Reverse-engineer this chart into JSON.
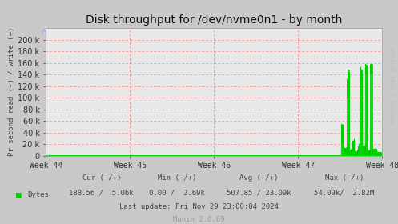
{
  "title": "Disk throughput for /dev/nvme0n1 - by month",
  "ylabel": "Pr second read (-) / write (+)",
  "xlabel_ticks": [
    "Week 44",
    "Week 45",
    "Week 46",
    "Week 47",
    "Week 48"
  ],
  "ylim": [
    0,
    220000
  ],
  "yticks": [
    0,
    20000,
    40000,
    60000,
    80000,
    100000,
    120000,
    140000,
    160000,
    180000,
    200000
  ],
  "bg_color": "#c9c9c9",
  "plot_bg_color": "#e8e8e8",
  "grid_color": "#ff9999",
  "line_color": "#00cc00",
  "fill_color": "#00dd00",
  "watermark": "RRDTOOL / TOBI OETIKER",
  "footer_munin": "Munin 2.0.69",
  "footer_update": "Last update: Fri Nov 29 23:00:04 2024",
  "legend_label": "Bytes",
  "legend_cur": "188.56 /  5.06k",
  "legend_min": "0.00 /  2.69k",
  "legend_avg": "507.85 / 23.09k",
  "legend_max": "54.09k/  2.82M"
}
